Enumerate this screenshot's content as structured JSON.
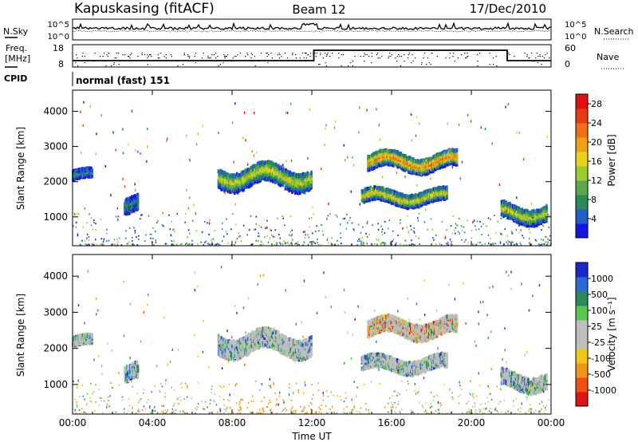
{
  "header": {
    "station": "Kapuskasing (fitACF)",
    "beam": "Beam 12",
    "date": "17/Dec/2010"
  },
  "strip_panels": {
    "noise": {
      "left_label": "N.Sky",
      "right_label": "N.Search",
      "left_ticks": [
        "10^5",
        "10^0"
      ],
      "right_ticks": [
        "10^5",
        "10^0"
      ]
    },
    "freq": {
      "left_label_1": "Freq.",
      "left_label_2": "[MHz]",
      "right_label": "Nave",
      "left_ticks": [
        "18",
        "8"
      ],
      "right_ticks": [
        "60",
        "0"
      ]
    },
    "cpid": {
      "label": "CPID",
      "value": "normal (fast) 151"
    }
  },
  "chart_data": [
    {
      "type": "heatmap",
      "parameter": "power",
      "ylabel": "Slant Range [km]",
      "xlabel": "",
      "xlim": [
        0,
        24
      ],
      "ylim": [
        180,
        4600
      ],
      "x_ticks": [
        "00:00",
        "04:00",
        "08:00",
        "12:00",
        "16:00",
        "20:00",
        "00:00"
      ],
      "y_ticks": [
        "1000",
        "2000",
        "3000",
        "4000"
      ],
      "colorbar": {
        "label": "Power [dB]",
        "ticks": [
          "4",
          "8",
          "12",
          "16",
          "20",
          "24",
          "28"
        ],
        "colors": [
          "#1414e6",
          "#1f5fc8",
          "#2b8a5a",
          "#5aa84a",
          "#9ccc2a",
          "#e8d21a",
          "#f0a014",
          "#f07014",
          "#e83a14",
          "#e01010"
        ]
      },
      "echo_regions": [
        {
          "t_start": 0.0,
          "t_end": 1.0,
          "r_start": 2000,
          "r_end": 2350,
          "level": 0.25
        },
        {
          "t_start": 2.6,
          "t_end": 3.3,
          "r_start": 1000,
          "r_end": 1600,
          "level": 0.2
        },
        {
          "t_start": 7.3,
          "t_end": 12.0,
          "r_start": 1750,
          "r_end": 2500,
          "level": 0.55
        },
        {
          "t_start": 14.8,
          "t_end": 19.3,
          "r_start": 2250,
          "r_end": 2850,
          "level": 0.8
        },
        {
          "t_start": 14.5,
          "t_end": 18.8,
          "r_start": 1300,
          "r_end": 1800,
          "level": 0.6
        },
        {
          "t_start": 21.5,
          "t_end": 23.8,
          "r_start": 800,
          "r_end": 1400,
          "level": 0.55
        }
      ]
    },
    {
      "type": "heatmap",
      "parameter": "velocity",
      "ylabel": "Slant Range [km]",
      "xlabel": "Time UT",
      "xlim": [
        0,
        24
      ],
      "ylim": [
        180,
        4600
      ],
      "x_ticks": [
        "00:00",
        "04:00",
        "08:00",
        "12:00",
        "16:00",
        "20:00",
        "00:00"
      ],
      "y_ticks": [
        "1000",
        "2000",
        "3000",
        "4000"
      ],
      "colorbar": {
        "label": "Velocity [m s⁻¹]",
        "ticks": [
          "1000",
          "500",
          "100",
          "25",
          "-25",
          "-100",
          "-500",
          "-1000"
        ],
        "colors": [
          "#1a28c8",
          "#2a6ad8",
          "#2a8a5a",
          "#5ac850",
          "#bebebe",
          "#bebebe",
          "#f0c814",
          "#f09614",
          "#f05014",
          "#e01414"
        ]
      },
      "echo_regions": [
        {
          "t_start": 0.0,
          "t_end": 1.0,
          "r_start": 2000,
          "r_end": 2350,
          "level": 0.5
        },
        {
          "t_start": 2.6,
          "t_end": 3.3,
          "r_start": 1000,
          "r_end": 1600,
          "level": 0.3
        },
        {
          "t_start": 7.3,
          "t_end": 12.0,
          "r_start": 1750,
          "r_end": 2500,
          "level": 0.5
        },
        {
          "t_start": 14.8,
          "t_end": 19.3,
          "r_start": 2250,
          "r_end": 2850,
          "level": 0.85
        },
        {
          "t_start": 14.5,
          "t_end": 18.8,
          "r_start": 1300,
          "r_end": 1800,
          "level": 0.5
        },
        {
          "t_start": 21.5,
          "t_end": 23.8,
          "r_start": 800,
          "r_end": 1400,
          "level": 0.45
        }
      ]
    }
  ]
}
